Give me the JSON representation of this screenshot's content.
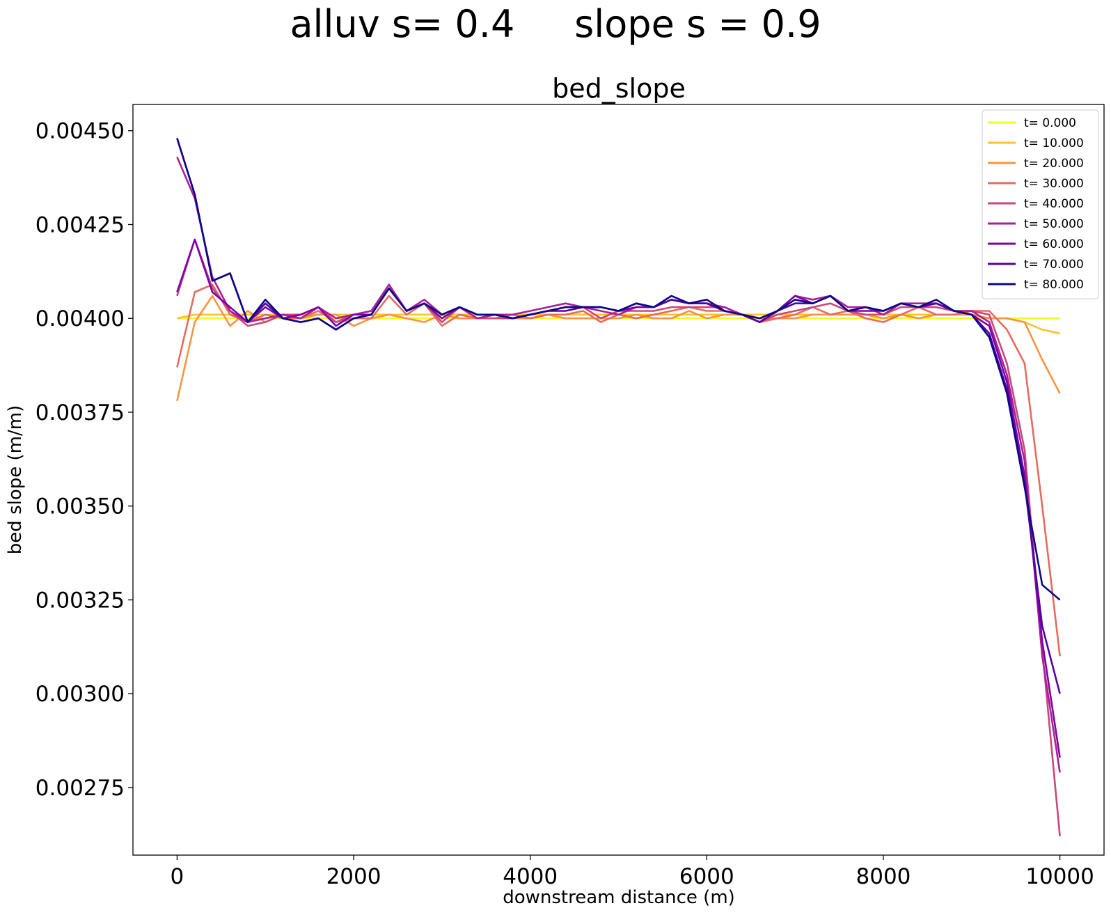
{
  "suptitle": "alluv s= 0.4     slope s = 0.9",
  "chart_data": {
    "type": "line",
    "title": "bed_slope",
    "xlabel": "downstream distance (m)",
    "ylabel": "bed slope (m/m)",
    "xlim": [
      -500,
      10500
    ],
    "ylim": [
      0.00257,
      0.00457
    ],
    "xticks": [
      0,
      2000,
      4000,
      6000,
      8000,
      10000
    ],
    "xtick_labels": [
      "0",
      "2000",
      "4000",
      "6000",
      "8000",
      "10000"
    ],
    "yticks": [
      0.00275,
      0.003,
      0.00325,
      0.0035,
      0.00375,
      0.004,
      0.00425,
      0.0045
    ],
    "ytick_labels": [
      "0.00275",
      "0.00300",
      "0.00325",
      "0.00350",
      "0.00375",
      "0.00400",
      "0.00425",
      "0.00450"
    ],
    "grid": false,
    "legend_position": "top-right",
    "x": [
      0,
      200,
      400,
      600,
      800,
      1000,
      1200,
      1400,
      1600,
      1800,
      2000,
      2200,
      2400,
      2600,
      2800,
      3000,
      3200,
      3400,
      3600,
      3800,
      4000,
      4200,
      4400,
      4600,
      4800,
      5000,
      5200,
      5400,
      5600,
      5800,
      6000,
      6200,
      6400,
      6600,
      6800,
      7000,
      7200,
      7400,
      7600,
      7800,
      8000,
      8200,
      8400,
      8600,
      8800,
      9000,
      9200,
      9400,
      9600,
      9800,
      10000
    ],
    "series": [
      {
        "name": "t= 0.000",
        "color": "#f0f921",
        "values": [
          0.004,
          0.004,
          0.004,
          0.004,
          0.004,
          0.004,
          0.004,
          0.004,
          0.004,
          0.004,
          0.004,
          0.004,
          0.004,
          0.004,
          0.004,
          0.004,
          0.004,
          0.004,
          0.004,
          0.004,
          0.004,
          0.004,
          0.004,
          0.004,
          0.004,
          0.004,
          0.004,
          0.004,
          0.004,
          0.004,
          0.004,
          0.004,
          0.004,
          0.004,
          0.004,
          0.004,
          0.004,
          0.004,
          0.004,
          0.004,
          0.004,
          0.004,
          0.004,
          0.004,
          0.004,
          0.004,
          0.004,
          0.004,
          0.004,
          0.004,
          0.004
        ]
      },
      {
        "name": "t= 10.000",
        "color": "#fdc328",
        "values": [
          0.004,
          0.00401,
          0.00401,
          0.00401,
          0.00401,
          0.00401,
          0.00401,
          0.00401,
          0.00401,
          0.00401,
          0.00401,
          0.00401,
          0.00401,
          0.00401,
          0.00401,
          0.00401,
          0.00401,
          0.00401,
          0.00401,
          0.00401,
          0.00401,
          0.00401,
          0.00401,
          0.00401,
          0.00401,
          0.00401,
          0.00401,
          0.00401,
          0.00401,
          0.00401,
          0.00401,
          0.00401,
          0.00401,
          0.00401,
          0.00401,
          0.00401,
          0.00401,
          0.00401,
          0.00401,
          0.00401,
          0.00401,
          0.00401,
          0.00401,
          0.00401,
          0.00401,
          0.00401,
          0.004,
          0.004,
          0.00399,
          0.00397,
          0.00396
        ]
      },
      {
        "name": "t= 20.000",
        "color": "#f89441",
        "values": [
          0.00378,
          0.00399,
          0.00406,
          0.00398,
          0.00402,
          0.00399,
          0.00401,
          0.004,
          0.00401,
          0.00401,
          0.00398,
          0.004,
          0.00401,
          0.004,
          0.00399,
          0.00401,
          0.004,
          0.004,
          0.00401,
          0.004,
          0.004,
          0.00401,
          0.004,
          0.004,
          0.004,
          0.004,
          0.00401,
          0.004,
          0.004,
          0.00402,
          0.004,
          0.00401,
          0.00401,
          0.004,
          0.004,
          0.004,
          0.00401,
          0.00401,
          0.00401,
          0.00401,
          0.004,
          0.00401,
          0.004,
          0.00401,
          0.00401,
          0.00401,
          0.004,
          0.004,
          0.00399,
          0.00389,
          0.0038
        ]
      },
      {
        "name": "t= 30.000",
        "color": "#e56b5d",
        "values": [
          0.00387,
          0.00407,
          0.00409,
          0.00401,
          0.00399,
          0.00401,
          0.004,
          0.004,
          0.00402,
          0.00399,
          0.004,
          0.004,
          0.00406,
          0.00401,
          0.00404,
          0.00398,
          0.00401,
          0.004,
          0.004,
          0.00401,
          0.004,
          0.00401,
          0.00401,
          0.00402,
          0.00399,
          0.00401,
          0.004,
          0.00401,
          0.00402,
          0.00403,
          0.00402,
          0.00402,
          0.00401,
          0.00399,
          0.004,
          0.00401,
          0.00403,
          0.00401,
          0.00402,
          0.004,
          0.00399,
          0.00401,
          0.00403,
          0.00401,
          0.00401,
          0.00402,
          0.00402,
          0.00397,
          0.00388,
          0.0035,
          0.0031
        ]
      },
      {
        "name": "t= 40.000",
        "color": "#cb4778",
        "values": [
          0.00406,
          0.00421,
          0.00408,
          0.00402,
          0.00398,
          0.00399,
          0.00401,
          0.00401,
          0.00403,
          0.00399,
          0.00401,
          0.00402,
          0.00408,
          0.00402,
          0.00404,
          0.00399,
          0.00403,
          0.004,
          0.004,
          0.004,
          0.00401,
          0.00402,
          0.00403,
          0.00403,
          0.004,
          0.00402,
          0.00402,
          0.00402,
          0.00403,
          0.00403,
          0.00403,
          0.00403,
          0.00401,
          0.00399,
          0.00401,
          0.00402,
          0.00403,
          0.00404,
          0.00402,
          0.00401,
          0.00401,
          0.00403,
          0.00403,
          0.00403,
          0.00402,
          0.00402,
          0.00401,
          0.00388,
          0.00365,
          0.00312,
          0.00262
        ]
      },
      {
        "name": "t= 50.000",
        "color": "#a72197",
        "values": [
          0.00443,
          0.00432,
          0.00411,
          0.00402,
          0.00399,
          0.004,
          0.00401,
          0.004,
          0.00403,
          0.004,
          0.00401,
          0.00402,
          0.00409,
          0.00402,
          0.00405,
          0.00401,
          0.00403,
          0.004,
          0.00401,
          0.00401,
          0.00402,
          0.00403,
          0.00404,
          0.00403,
          0.00402,
          0.00401,
          0.00403,
          0.00403,
          0.00405,
          0.00404,
          0.00404,
          0.00403,
          0.00401,
          0.00399,
          0.00402,
          0.00406,
          0.00405,
          0.00406,
          0.00403,
          0.00403,
          0.00401,
          0.00404,
          0.00404,
          0.00404,
          0.00402,
          0.00402,
          0.00399,
          0.00385,
          0.00362,
          0.0031,
          0.00279
        ]
      },
      {
        "name": "t= 60.000",
        "color": "#7e03a8",
        "values": [
          0.00407,
          0.00421,
          0.00407,
          0.00403,
          0.00399,
          0.00403,
          0.004,
          0.00401,
          0.00403,
          0.00398,
          0.00401,
          0.00401,
          0.00408,
          0.00402,
          0.00404,
          0.004,
          0.00403,
          0.00401,
          0.00401,
          0.004,
          0.00401,
          0.00402,
          0.00403,
          0.00403,
          0.00403,
          0.00402,
          0.00403,
          0.00403,
          0.00405,
          0.00404,
          0.00404,
          0.00402,
          0.00401,
          0.00399,
          0.00402,
          0.00406,
          0.00404,
          0.00406,
          0.00402,
          0.00402,
          0.00402,
          0.00404,
          0.00403,
          0.00404,
          0.00402,
          0.00401,
          0.00398,
          0.00383,
          0.00358,
          0.00314,
          0.00283
        ]
      },
      {
        "name": "t= 70.000",
        "color": "#5402a3",
        "values": [
          0.00448,
          0.00433,
          0.0041,
          0.00412,
          0.00399,
          0.00404,
          0.004,
          0.00399,
          0.004,
          0.00397,
          0.004,
          0.00401,
          0.00408,
          0.00402,
          0.00404,
          0.00401,
          0.00403,
          0.00401,
          0.00401,
          0.004,
          0.00401,
          0.00402,
          0.00402,
          0.00403,
          0.00403,
          0.00402,
          0.00404,
          0.00403,
          0.00405,
          0.00404,
          0.00404,
          0.00402,
          0.00401,
          0.00399,
          0.00402,
          0.00404,
          0.00404,
          0.00406,
          0.00402,
          0.00403,
          0.00402,
          0.00404,
          0.00403,
          0.00404,
          0.00402,
          0.00401,
          0.00396,
          0.00381,
          0.00356,
          0.00318,
          0.003
        ]
      },
      {
        "name": "t= 80.000",
        "color": "#0d0887",
        "values": [
          0.00448,
          0.00433,
          0.0041,
          0.00412,
          0.00399,
          0.00405,
          0.004,
          0.00399,
          0.004,
          0.00397,
          0.004,
          0.00401,
          0.00408,
          0.00402,
          0.00404,
          0.00401,
          0.00403,
          0.00401,
          0.00401,
          0.004,
          0.00401,
          0.00402,
          0.00403,
          0.00403,
          0.00403,
          0.00402,
          0.00404,
          0.00403,
          0.00406,
          0.00404,
          0.00405,
          0.00402,
          0.00401,
          0.004,
          0.00402,
          0.00405,
          0.00404,
          0.00406,
          0.00402,
          0.00403,
          0.00402,
          0.00404,
          0.00403,
          0.00405,
          0.00402,
          0.00401,
          0.00395,
          0.0038,
          0.00355,
          0.00329,
          0.00325
        ]
      }
    ]
  }
}
